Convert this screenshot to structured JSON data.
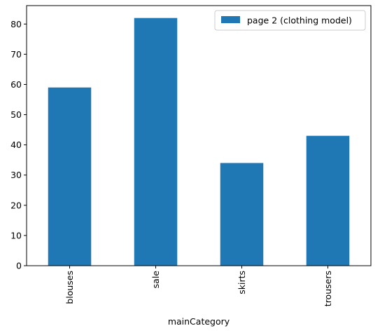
{
  "chart_data": {
    "type": "bar",
    "categories": [
      "blouses",
      "sale",
      "skirts",
      "trousers"
    ],
    "series": [
      {
        "name": "page 2 (clothing model)",
        "values": [
          59,
          82,
          34,
          43
        ],
        "color": "#1f77b4"
      }
    ],
    "xlabel": "mainCategory",
    "ylabel": "",
    "title": "",
    "ylim": [
      0,
      86.1
    ],
    "yticks": [
      0,
      10,
      20,
      30,
      40,
      50,
      60,
      70,
      80
    ],
    "grid": false,
    "legend_position": "top-right"
  }
}
